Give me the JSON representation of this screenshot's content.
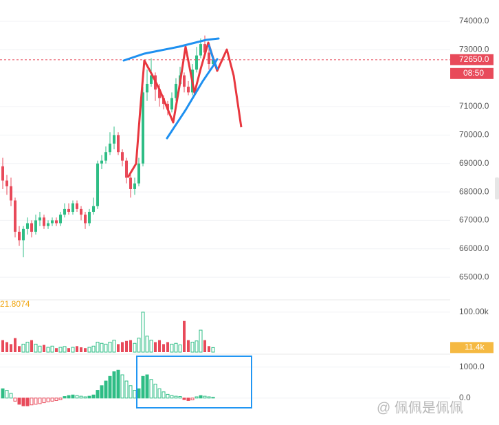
{
  "chart_data": [
    {
      "type": "candlestick",
      "up_color": "#2ebd85",
      "down_color": "#e84a5a",
      "open": [
        68900,
        68400,
        68200,
        67700,
        66600,
        66300,
        66700,
        66900,
        66600,
        67000,
        67100,
        66800,
        66900,
        67000,
        66900,
        67200,
        67400,
        67300,
        67600,
        67400,
        67200,
        66900,
        67300,
        67500,
        69000,
        69100,
        69400,
        69700,
        70000,
        69400,
        69100,
        68500,
        68100,
        68300,
        69000,
        71500,
        71800,
        72100,
        71600,
        71300,
        71100,
        70900,
        71300,
        71800,
        72100,
        71700,
        71500,
        72300,
        72800,
        73200,
        72900,
        72500
      ],
      "high": [
        69200,
        68600,
        68500,
        67800,
        66800,
        66800,
        67100,
        67000,
        67200,
        67300,
        67200,
        67000,
        67100,
        67100,
        67300,
        67600,
        67600,
        67700,
        67700,
        67500,
        67300,
        67400,
        67800,
        69100,
        69300,
        69600,
        70100,
        70300,
        70100,
        69500,
        69200,
        68600,
        68500,
        69200,
        71700,
        72300,
        72700,
        72200,
        71800,
        71400,
        71200,
        71500,
        72000,
        72400,
        72200,
        71900,
        72500,
        73100,
        73400,
        73500,
        73100,
        72800
      ],
      "low": [
        68100,
        67900,
        67500,
        66400,
        66100,
        65700,
        66500,
        66400,
        66500,
        66800,
        66700,
        66700,
        66800,
        66800,
        66800,
        67100,
        67200,
        67200,
        67300,
        67000,
        66700,
        66800,
        67200,
        67400,
        68800,
        69000,
        69300,
        69500,
        69300,
        68900,
        68300,
        67800,
        67900,
        68200,
        68900,
        71200,
        71700,
        71200,
        71000,
        70900,
        70700,
        70800,
        71200,
        71700,
        71500,
        71400,
        71400,
        72200,
        72700,
        72800,
        72300,
        72400
      ],
      "close": [
        68400,
        68200,
        67700,
        66600,
        66300,
        66700,
        66900,
        66600,
        67000,
        67100,
        66800,
        66900,
        67000,
        66900,
        67200,
        67400,
        67300,
        67600,
        67400,
        67200,
        66900,
        67300,
        67500,
        69000,
        69100,
        69400,
        69700,
        70000,
        69400,
        69100,
        68500,
        68100,
        68300,
        69000,
        71500,
        71800,
        72100,
        71600,
        71300,
        71100,
        70900,
        71300,
        71800,
        72100,
        71700,
        71500,
        72300,
        72800,
        73200,
        72900,
        72500,
        72650
      ],
      "ylim": [
        64350,
        74750
      ],
      "yticks": [
        {
          "value": 74000,
          "label": "74000.0"
        },
        {
          "value": 73000,
          "label": "73000.0"
        },
        {
          "value": 71000,
          "label": "71000.0"
        },
        {
          "value": 70000,
          "label": "70000.0"
        },
        {
          "value": 69000,
          "label": "69000.0"
        },
        {
          "value": 68000,
          "label": "68000.0"
        },
        {
          "value": 67000,
          "label": "67000.0"
        },
        {
          "value": 66000,
          "label": "66000.0"
        },
        {
          "value": 65000,
          "label": "65000.0"
        }
      ],
      "last_price": {
        "value": 72650,
        "label": "72650.0"
      },
      "countdown": "08:50",
      "grid": true
    },
    {
      "type": "volume",
      "values": [
        30000,
        25000,
        20000,
        35000,
        15000,
        20000,
        25000,
        30000,
        20000,
        15000,
        18000,
        12000,
        15000,
        10000,
        12000,
        14000,
        10000,
        12000,
        15000,
        12000,
        10000,
        12000,
        15000,
        25000,
        22000,
        20000,
        25000,
        30000,
        20000,
        25000,
        28000,
        30000,
        22000,
        35000,
        100000,
        40000,
        30000,
        25000,
        30000,
        20000,
        25000,
        20000,
        22000,
        18000,
        78000,
        30000,
        25000,
        28000,
        55000,
        30000,
        15000,
        11400
      ],
      "ylim": [
        0,
        124000
      ],
      "yticks": [
        {
          "value": 100000,
          "label": "100.00k"
        }
      ],
      "last_volume": {
        "value": 11400,
        "label": "11.4k"
      },
      "indicator_label": "21.8074"
    },
    {
      "type": "macd",
      "values": [
        300,
        250,
        150,
        -100,
        -200,
        -250,
        -250,
        -220,
        -200,
        -180,
        -150,
        -120,
        -100,
        -80,
        -50,
        50,
        80,
        100,
        80,
        60,
        40,
        60,
        100,
        250,
        400,
        550,
        700,
        850,
        900,
        750,
        550,
        400,
        250,
        300,
        700,
        750,
        600,
        450,
        300,
        200,
        120,
        80,
        60,
        50,
        -50,
        -80,
        -60,
        40,
        80,
        60,
        40,
        30
      ],
      "ylim": [
        -470,
        1350
      ],
      "yticks": [
        {
          "value": 1000,
          "label": "1000.0"
        },
        {
          "value": 0,
          "label": "0.0"
        }
      ]
    }
  ],
  "watermark": "@ 佩佩是佩佩"
}
